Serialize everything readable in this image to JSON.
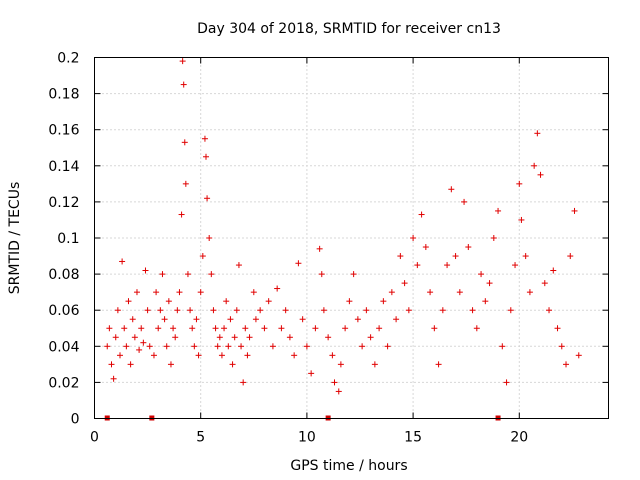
{
  "chart_data": {
    "type": "scatter",
    "title": "Day 304 of 2018, SRMTID for receiver cn13",
    "xlabel": "GPS time / hours",
    "ylabel": "SRMTID / TECUs",
    "xlim": [
      0,
      24.2
    ],
    "ylim": [
      0,
      0.2
    ],
    "xticks": [
      0,
      5,
      10,
      15,
      20
    ],
    "xtick_labels": [
      "0",
      "5",
      "10",
      "15",
      "20"
    ],
    "yticks": [
      0,
      0.02,
      0.04,
      0.06,
      0.08,
      0.1,
      0.12,
      0.14,
      0.16,
      0.18,
      0.2
    ],
    "ytick_labels": [
      "0",
      "0.02",
      "0.04",
      "0.06",
      "0.08",
      "0.1",
      "0.12",
      "0.14",
      "0.16",
      "0.18",
      "0.2"
    ],
    "grid": true,
    "marker": "plus",
    "color": "#e00000",
    "zero_value_hours": [
      0.6,
      2.7,
      11.0,
      19.0
    ],
    "series": [
      {
        "name": "SRMTID",
        "sampling": "dense scatter, one point roughly every 0.02 h; values listed as [hour, TECU] for the visible clusters",
        "points": [
          [
            0.6,
            0.04
          ],
          [
            0.7,
            0.05
          ],
          [
            0.8,
            0.03
          ],
          [
            0.9,
            0.022
          ],
          [
            1.0,
            0.045
          ],
          [
            1.1,
            0.06
          ],
          [
            1.2,
            0.035
          ],
          [
            1.3,
            0.087
          ],
          [
            1.4,
            0.05
          ],
          [
            1.5,
            0.04
          ],
          [
            1.6,
            0.065
          ],
          [
            1.7,
            0.03
          ],
          [
            1.8,
            0.055
          ],
          [
            1.9,
            0.045
          ],
          [
            2.0,
            0.07
          ],
          [
            2.1,
            0.038
          ],
          [
            2.2,
            0.05
          ],
          [
            2.3,
            0.042
          ],
          [
            2.4,
            0.082
          ],
          [
            2.5,
            0.06
          ],
          [
            2.6,
            0.04
          ],
          [
            2.8,
            0.035
          ],
          [
            2.9,
            0.07
          ],
          [
            3.0,
            0.05
          ],
          [
            3.1,
            0.06
          ],
          [
            3.2,
            0.08
          ],
          [
            3.3,
            0.055
          ],
          [
            3.4,
            0.04
          ],
          [
            3.5,
            0.065
          ],
          [
            3.6,
            0.03
          ],
          [
            3.7,
            0.05
          ],
          [
            3.8,
            0.045
          ],
          [
            3.9,
            0.06
          ],
          [
            4.0,
            0.07
          ],
          [
            4.1,
            0.113
          ],
          [
            4.15,
            0.198
          ],
          [
            4.2,
            0.185
          ],
          [
            4.25,
            0.153
          ],
          [
            4.3,
            0.13
          ],
          [
            4.4,
            0.08
          ],
          [
            4.5,
            0.06
          ],
          [
            4.6,
            0.05
          ],
          [
            4.7,
            0.04
          ],
          [
            4.8,
            0.055
          ],
          [
            4.9,
            0.035
          ],
          [
            5.0,
            0.07
          ],
          [
            5.1,
            0.09
          ],
          [
            5.2,
            0.155
          ],
          [
            5.25,
            0.145
          ],
          [
            5.3,
            0.122
          ],
          [
            5.4,
            0.1
          ],
          [
            5.5,
            0.08
          ],
          [
            5.6,
            0.06
          ],
          [
            5.7,
            0.05
          ],
          [
            5.8,
            0.04
          ],
          [
            5.9,
            0.045
          ],
          [
            6.0,
            0.035
          ],
          [
            6.1,
            0.05
          ],
          [
            6.2,
            0.065
          ],
          [
            6.3,
            0.04
          ],
          [
            6.4,
            0.055
          ],
          [
            6.5,
            0.03
          ],
          [
            6.6,
            0.045
          ],
          [
            6.7,
            0.06
          ],
          [
            6.8,
            0.085
          ],
          [
            6.9,
            0.04
          ],
          [
            7.0,
            0.02
          ],
          [
            7.1,
            0.05
          ],
          [
            7.2,
            0.035
          ],
          [
            7.3,
            0.045
          ],
          [
            7.5,
            0.07
          ],
          [
            7.6,
            0.055
          ],
          [
            7.8,
            0.06
          ],
          [
            8.0,
            0.05
          ],
          [
            8.2,
            0.065
          ],
          [
            8.4,
            0.04
          ],
          [
            8.6,
            0.072
          ],
          [
            8.8,
            0.05
          ],
          [
            9.0,
            0.06
          ],
          [
            9.2,
            0.045
          ],
          [
            9.4,
            0.035
          ],
          [
            9.6,
            0.086
          ],
          [
            9.8,
            0.055
          ],
          [
            10.0,
            0.04
          ],
          [
            10.2,
            0.025
          ],
          [
            10.4,
            0.05
          ],
          [
            10.6,
            0.094
          ],
          [
            10.7,
            0.08
          ],
          [
            10.8,
            0.06
          ],
          [
            11.0,
            0.045
          ],
          [
            11.2,
            0.035
          ],
          [
            11.3,
            0.02
          ],
          [
            11.5,
            0.015
          ],
          [
            11.6,
            0.03
          ],
          [
            11.8,
            0.05
          ],
          [
            12.0,
            0.065
          ],
          [
            12.2,
            0.08
          ],
          [
            12.4,
            0.055
          ],
          [
            12.6,
            0.04
          ],
          [
            12.8,
            0.06
          ],
          [
            13.0,
            0.045
          ],
          [
            13.2,
            0.03
          ],
          [
            13.4,
            0.05
          ],
          [
            13.6,
            0.065
          ],
          [
            13.8,
            0.04
          ],
          [
            14.0,
            0.07
          ],
          [
            14.2,
            0.055
          ],
          [
            14.4,
            0.09
          ],
          [
            14.6,
            0.075
          ],
          [
            14.8,
            0.06
          ],
          [
            15.0,
            0.1
          ],
          [
            15.2,
            0.085
          ],
          [
            15.4,
            0.113
          ],
          [
            15.6,
            0.095
          ],
          [
            15.8,
            0.07
          ],
          [
            16.0,
            0.05
          ],
          [
            16.2,
            0.03
          ],
          [
            16.4,
            0.06
          ],
          [
            16.6,
            0.085
          ],
          [
            16.8,
            0.127
          ],
          [
            17.0,
            0.09
          ],
          [
            17.2,
            0.07
          ],
          [
            17.4,
            0.12
          ],
          [
            17.6,
            0.095
          ],
          [
            17.8,
            0.06
          ],
          [
            18.0,
            0.05
          ],
          [
            18.2,
            0.08
          ],
          [
            18.4,
            0.065
          ],
          [
            18.6,
            0.075
          ],
          [
            18.8,
            0.1
          ],
          [
            19.0,
            0.115
          ],
          [
            19.2,
            0.04
          ],
          [
            19.4,
            0.02
          ],
          [
            19.6,
            0.06
          ],
          [
            19.8,
            0.085
          ],
          [
            20.0,
            0.13
          ],
          [
            20.1,
            0.11
          ],
          [
            20.3,
            0.09
          ],
          [
            20.5,
            0.07
          ],
          [
            20.7,
            0.14
          ],
          [
            20.85,
            0.158
          ],
          [
            21.0,
            0.135
          ],
          [
            21.2,
            0.075
          ],
          [
            21.4,
            0.06
          ],
          [
            21.6,
            0.082
          ],
          [
            21.8,
            0.05
          ],
          [
            22.0,
            0.04
          ],
          [
            22.2,
            0.03
          ],
          [
            22.4,
            0.09
          ],
          [
            22.6,
            0.115
          ],
          [
            22.8,
            0.035
          ]
        ]
      }
    ]
  }
}
